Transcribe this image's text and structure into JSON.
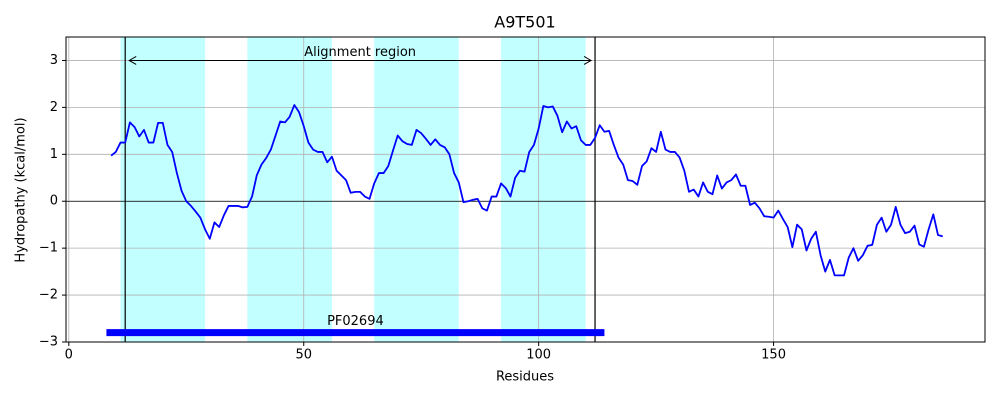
{
  "chart_data": {
    "type": "line",
    "title": "A9T501",
    "x_label": "Residues",
    "y_label": "Hydropathy (kcal/mol)",
    "x": [
      9,
      10,
      11,
      12,
      13,
      14,
      15,
      16,
      17,
      18,
      19,
      20,
      21,
      22,
      23,
      24,
      25,
      26,
      27,
      28,
      29,
      30,
      31,
      32,
      33,
      34,
      35,
      36,
      37,
      38,
      39,
      40,
      41,
      42,
      43,
      44,
      45,
      46,
      47,
      48,
      49,
      50,
      51,
      52,
      53,
      54,
      55,
      56,
      57,
      58,
      59,
      60,
      61,
      62,
      63,
      64,
      65,
      66,
      67,
      68,
      69,
      70,
      71,
      72,
      73,
      74,
      75,
      76,
      77,
      78,
      79,
      80,
      81,
      82,
      83,
      84,
      85,
      86,
      87,
      88,
      89,
      90,
      91,
      92,
      93,
      94,
      95,
      96,
      97,
      98,
      99,
      100,
      101,
      102,
      103,
      104,
      105,
      106,
      107,
      108,
      109,
      110,
      111,
      112,
      113,
      114,
      115,
      116,
      117,
      118,
      119,
      120,
      121,
      122,
      123,
      124,
      125,
      126,
      127,
      128,
      129,
      130,
      131,
      132,
      133,
      134,
      135,
      136,
      137,
      138,
      139,
      140,
      141,
      142,
      143,
      144,
      145,
      146,
      147,
      148,
      149,
      150,
      151,
      152,
      153,
      154,
      155,
      156,
      157,
      158,
      159,
      160,
      161,
      162,
      163,
      164,
      165,
      166,
      167,
      168,
      169,
      170,
      171,
      172,
      173,
      174,
      175,
      176,
      177,
      178,
      179,
      180,
      181,
      182,
      183,
      184,
      185,
      186
    ],
    "values": [
      0.97,
      1.05,
      1.25,
      1.25,
      1.68,
      1.58,
      1.38,
      1.52,
      1.25,
      1.25,
      1.67,
      1.67,
      1.2,
      1.05,
      0.6,
      0.22,
      0.0,
      -0.1,
      -0.22,
      -0.35,
      -0.6,
      -0.8,
      -0.45,
      -0.55,
      -0.3,
      -0.1,
      -0.1,
      -0.1,
      -0.13,
      -0.12,
      0.1,
      0.55,
      0.78,
      0.92,
      1.1,
      1.4,
      1.7,
      1.68,
      1.8,
      2.05,
      1.9,
      1.6,
      1.25,
      1.1,
      1.05,
      1.05,
      0.83,
      0.95,
      0.65,
      0.55,
      0.45,
      0.18,
      0.2,
      0.2,
      0.1,
      0.05,
      0.38,
      0.6,
      0.6,
      0.75,
      1.08,
      1.4,
      1.28,
      1.22,
      1.2,
      1.52,
      1.45,
      1.33,
      1.2,
      1.32,
      1.2,
      1.15,
      1.0,
      0.6,
      0.4,
      -0.02,
      0.0,
      0.03,
      0.05,
      -0.15,
      -0.2,
      0.1,
      0.1,
      0.38,
      0.28,
      0.1,
      0.5,
      0.65,
      0.63,
      1.05,
      1.2,
      1.55,
      2.03,
      2.0,
      2.02,
      1.82,
      1.47,
      1.7,
      1.55,
      1.6,
      1.3,
      1.2,
      1.2,
      1.35,
      1.62,
      1.48,
      1.5,
      1.2,
      0.93,
      0.78,
      0.45,
      0.43,
      0.35,
      0.75,
      0.85,
      1.13,
      1.05,
      1.48,
      1.1,
      1.05,
      1.05,
      0.93,
      0.65,
      0.2,
      0.25,
      0.1,
      0.4,
      0.2,
      0.15,
      0.55,
      0.27,
      0.4,
      0.45,
      0.57,
      0.33,
      0.33,
      -0.08,
      -0.03,
      -0.15,
      -0.32,
      -0.33,
      -0.35,
      -0.2,
      -0.38,
      -0.55,
      -0.98,
      -0.5,
      -0.6,
      -1.05,
      -0.8,
      -0.65,
      -1.15,
      -1.5,
      -1.25,
      -1.58,
      -1.58,
      -1.58,
      -1.2,
      -1.0,
      -1.27,
      -1.15,
      -0.95,
      -0.93,
      -0.5,
      -0.35,
      -0.65,
      -0.5,
      -0.12,
      -0.5,
      -0.68,
      -0.65,
      -0.52,
      -0.92,
      -0.97,
      -0.6,
      -0.28,
      -0.72,
      -0.75
    ],
    "color": "#0000ff",
    "xlim": [
      -0.6,
      195
    ],
    "ylim": [
      -3,
      3.5
    ],
    "xticks": [
      0,
      50,
      100,
      150
    ],
    "yticks": [
      {
        "value": -3,
        "label": "−3"
      },
      {
        "value": -2,
        "label": "−2"
      },
      {
        "value": -1,
        "label": "−1"
      },
      0,
      1,
      2,
      3
    ],
    "grid": true,
    "hline": 0,
    "regions": [
      {
        "start": 11,
        "end": 29
      },
      {
        "start": 38,
        "end": 56
      },
      {
        "start": 65,
        "end": 83
      },
      {
        "start": 92,
        "end": 110
      }
    ],
    "region_color": "#c2ffff",
    "vlines": [
      12,
      112
    ],
    "annotation": {
      "text": "Alignment region",
      "start": 12,
      "end": 112,
      "y": 3
    },
    "domain": {
      "label": "PF02694",
      "start": 8,
      "end": 114,
      "y": -2.8,
      "color": "#0000ff"
    }
  }
}
